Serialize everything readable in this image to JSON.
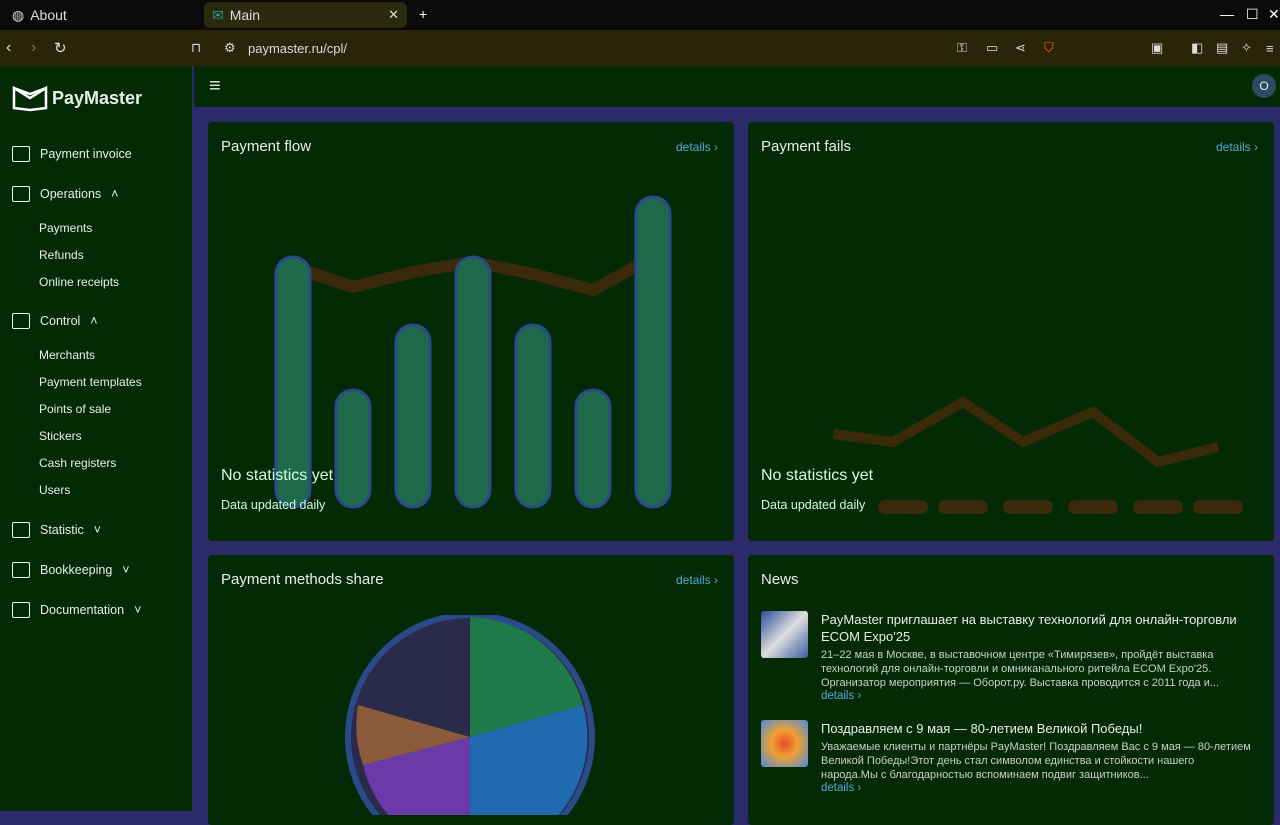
{
  "browser": {
    "tabs": [
      {
        "label": "About"
      },
      {
        "label": "Main"
      }
    ],
    "url": "paymaster.ru/cpl/"
  },
  "sidebar": {
    "logo": "PayMaster",
    "items": [
      {
        "label": "Payment invoice"
      },
      {
        "label": "Operations"
      },
      {
        "label": "Payments"
      },
      {
        "label": "Refunds"
      },
      {
        "label": "Online receipts"
      },
      {
        "label": "Control"
      },
      {
        "label": "Merchants"
      },
      {
        "label": "Payment templates"
      },
      {
        "label": "Points of sale"
      },
      {
        "label": "Stickers"
      },
      {
        "label": "Cash registers"
      },
      {
        "label": "Users"
      },
      {
        "label": "Statistic"
      },
      {
        "label": "Bookkeeping"
      },
      {
        "label": "Documentation"
      }
    ]
  },
  "header": {
    "avatar": "O"
  },
  "cards": {
    "flow": {
      "title": "Payment flow",
      "details": "details ›",
      "empty": "No statistics yet",
      "note": "Data updated daily"
    },
    "fails": {
      "title": "Payment fails",
      "details": "details ›",
      "empty": "No statistics yet",
      "note": "Data updated daily"
    },
    "methods": {
      "title": "Payment methods share",
      "details": "details ›"
    },
    "news": {
      "title": "News",
      "items": [
        {
          "title": "PayMaster приглашает на выставку технологий для онлайн-торговли ECOM Expo'25",
          "text": "21–22 мая в Москве, в выставочном центре «Тимирязев», пройдёт выставка технологий для онлайн-торговли и омниканального ритейла ECOM Expo'25. Организатор мероприятия — Оборот.ру. Выставка проводится с 2011 года и...",
          "link": "details ›"
        },
        {
          "title": "Поздравляем с 9 мая — 80-летием Великой Победы!",
          "text": "Уважаемые клиенты и партнёры PayMaster! Поздравляем Вас с 9 мая — 80-летием Великой Победы!Этот день стал символом единства и стойкости нашего народа.Мы с благодарностью вспоминаем подвиг защитников...",
          "link": "details ›"
        }
      ]
    }
  },
  "colors": {
    "accent": "#5aa6d6",
    "background": "#032a05",
    "page": "#2b2b6b"
  }
}
